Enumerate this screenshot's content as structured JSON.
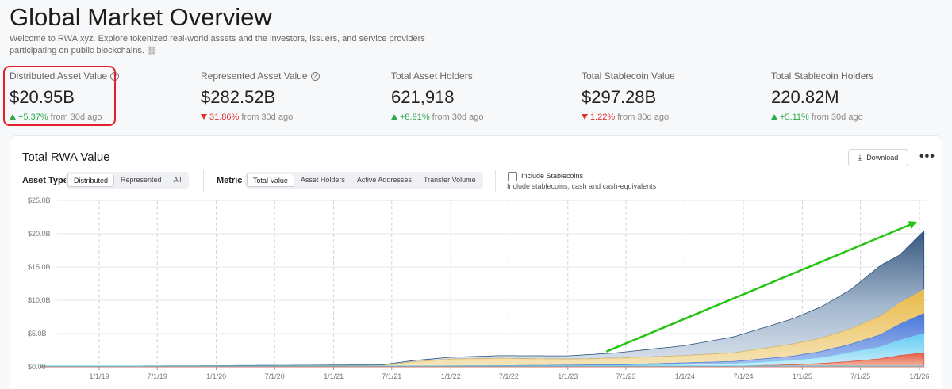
{
  "header": {
    "title": "Global Market Overview",
    "description": "Welcome to RWA.xyz. Explore tokenized real-world assets and the investors, issuers, and service providers participating on public blockchains.",
    "link_icon": "link-icon"
  },
  "stats": [
    {
      "label": "Distributed Asset Value",
      "has_help": true,
      "value": "$20.95B",
      "direction": "up",
      "change": "+5.37%",
      "suffix": "from 30d ago"
    },
    {
      "label": "Represented Asset Value",
      "has_help": true,
      "value": "$282.52B",
      "direction": "down",
      "change": "31.86%",
      "suffix": "from 30d ago"
    },
    {
      "label": "Total Asset Holders",
      "has_help": false,
      "value": "621,918",
      "direction": "up",
      "change": "+8.91%",
      "suffix": "from 30d ago"
    },
    {
      "label": "Total Stablecoin Value",
      "has_help": false,
      "value": "$297.28B",
      "direction": "down",
      "change": "1.22%",
      "suffix": "from 30d ago"
    },
    {
      "label": "Total Stablecoin Holders",
      "has_help": false,
      "value": "220.82M",
      "direction": "up",
      "change": "+5.11%",
      "suffix": "from 30d ago"
    }
  ],
  "card": {
    "title": "Total RWA Value",
    "download_label": "Download",
    "more_label": "•••",
    "asset_type_label": "Asset Type",
    "asset_type_options": [
      "Distributed",
      "Represented",
      "All"
    ],
    "asset_type_selected": "Distributed",
    "metric_label": "Metric",
    "metric_options": [
      "Total Value",
      "Asset Holders",
      "Active Addresses",
      "Transfer Volume"
    ],
    "metric_selected": "Total Value",
    "include_stablecoins_label": "Include Stablecoins",
    "include_stablecoins_checked": false,
    "include_stablecoins_sub": "Include stablecoins, cash and cash-equivalents"
  },
  "colors": {
    "up": "#2fa84f",
    "down": "#e03131",
    "highlight": "#e2222a",
    "arrow": "#22c40f",
    "series_total": "#2c4f78",
    "series_gold": "#e8c36a",
    "series_blue": "#4a7ddb",
    "series_cyan": "#7fd6f5",
    "series_red": "#e4543f"
  },
  "chart_data": {
    "type": "area",
    "stacked": true,
    "title": "",
    "xlabel": "",
    "ylabel": "",
    "y_tick_labels": [
      "$0.00",
      "$5.0B",
      "$10.0B",
      "$15.0B",
      "$20.0B",
      "$25.0B"
    ],
    "ylim": [
      0,
      25
    ],
    "y_unit": "B USD",
    "x_tick_labels": [
      "1/1/19",
      "7/1/19",
      "1/1/20",
      "7/1/20",
      "1/1/21",
      "7/1/21",
      "1/1/22",
      "7/1/22",
      "1/1/23",
      "7/1/23",
      "1/1/24",
      "7/1/24",
      "1/1/25",
      "7/1/25",
      "1/1/26"
    ],
    "x_start": "2018-07-01",
    "x_end": "2026-01-15",
    "grid": true,
    "legend": "none",
    "series": [
      {
        "color": "#e4543f",
        "x": [
          "2018-07-01",
          "2021-06-01",
          "2022-06-01",
          "2023-06-01",
          "2024-06-01",
          "2024-12-01",
          "2025-03-01",
          "2025-06-01",
          "2025-09-01",
          "2025-11-01",
          "2026-01-15"
        ],
        "values": [
          0,
          0.02,
          0.03,
          0.05,
          0.1,
          0.3,
          0.5,
          0.8,
          1.2,
          1.7,
          2.1
        ]
      },
      {
        "color": "#7fd6f5",
        "x": [
          "2018-07-01",
          "2021-06-01",
          "2022-06-01",
          "2023-06-01",
          "2024-06-01",
          "2024-12-01",
          "2025-03-01",
          "2025-06-01",
          "2025-09-01",
          "2025-11-01",
          "2026-01-15"
        ],
        "values": [
          0.02,
          0.05,
          0.1,
          0.15,
          0.4,
          0.7,
          0.9,
          1.4,
          1.8,
          2.3,
          2.9
        ]
      },
      {
        "color": "#4a7ddb",
        "x": [
          "2018-07-01",
          "2021-06-01",
          "2022-06-01",
          "2023-06-01",
          "2024-06-01",
          "2024-12-01",
          "2025-03-01",
          "2025-06-01",
          "2025-09-01",
          "2025-11-01",
          "2026-01-15"
        ],
        "values": [
          0,
          0.02,
          0.05,
          0.1,
          0.3,
          0.6,
          0.9,
          1.2,
          1.8,
          2.4,
          3.0
        ]
      },
      {
        "color": "#e8c36a",
        "x": [
          "2018-07-01",
          "2021-06-01",
          "2021-09-01",
          "2022-01-01",
          "2022-06-01",
          "2023-01-01",
          "2023-06-01",
          "2024-01-01",
          "2024-06-01",
          "2024-12-01",
          "2025-03-01",
          "2025-06-01",
          "2025-09-01",
          "2025-11-01",
          "2026-01-15"
        ],
        "values": [
          0,
          0.1,
          0.6,
          1.0,
          1.1,
          0.9,
          1.0,
          1.1,
          1.3,
          1.8,
          2.0,
          2.3,
          2.8,
          3.2,
          3.6
        ]
      },
      {
        "color": "#2c4f78",
        "x": [
          "2018-07-01",
          "2021-06-01",
          "2021-09-01",
          "2022-01-01",
          "2022-06-01",
          "2023-01-01",
          "2023-06-01",
          "2024-01-01",
          "2024-06-01",
          "2024-12-01",
          "2025-03-01",
          "2025-06-01",
          "2025-09-01",
          "2025-11-01",
          "2026-01-15"
        ],
        "values": [
          0.05,
          0.1,
          0.2,
          0.3,
          0.4,
          0.5,
          0.8,
          1.5,
          2.4,
          3.8,
          4.7,
          5.9,
          7.6,
          7.2,
          8.8
        ]
      }
    ],
    "total": {
      "x": [
        "2018-07-01",
        "2021-06-01",
        "2022-06-01",
        "2023-06-01",
        "2024-06-01",
        "2024-12-01",
        "2025-03-01",
        "2025-06-01",
        "2025-09-01",
        "2025-11-01",
        "2026-01-15"
      ],
      "values": [
        0.07,
        0.3,
        1.7,
        2.1,
        4.5,
        7.2,
        9.0,
        11.6,
        15.2,
        16.8,
        20.4
      ]
    },
    "annotation": {
      "type": "arrow",
      "color": "#22c40f",
      "from": [
        "2023-05-01",
        2.3
      ],
      "to": [
        "2025-12-15",
        21.6
      ]
    }
  }
}
